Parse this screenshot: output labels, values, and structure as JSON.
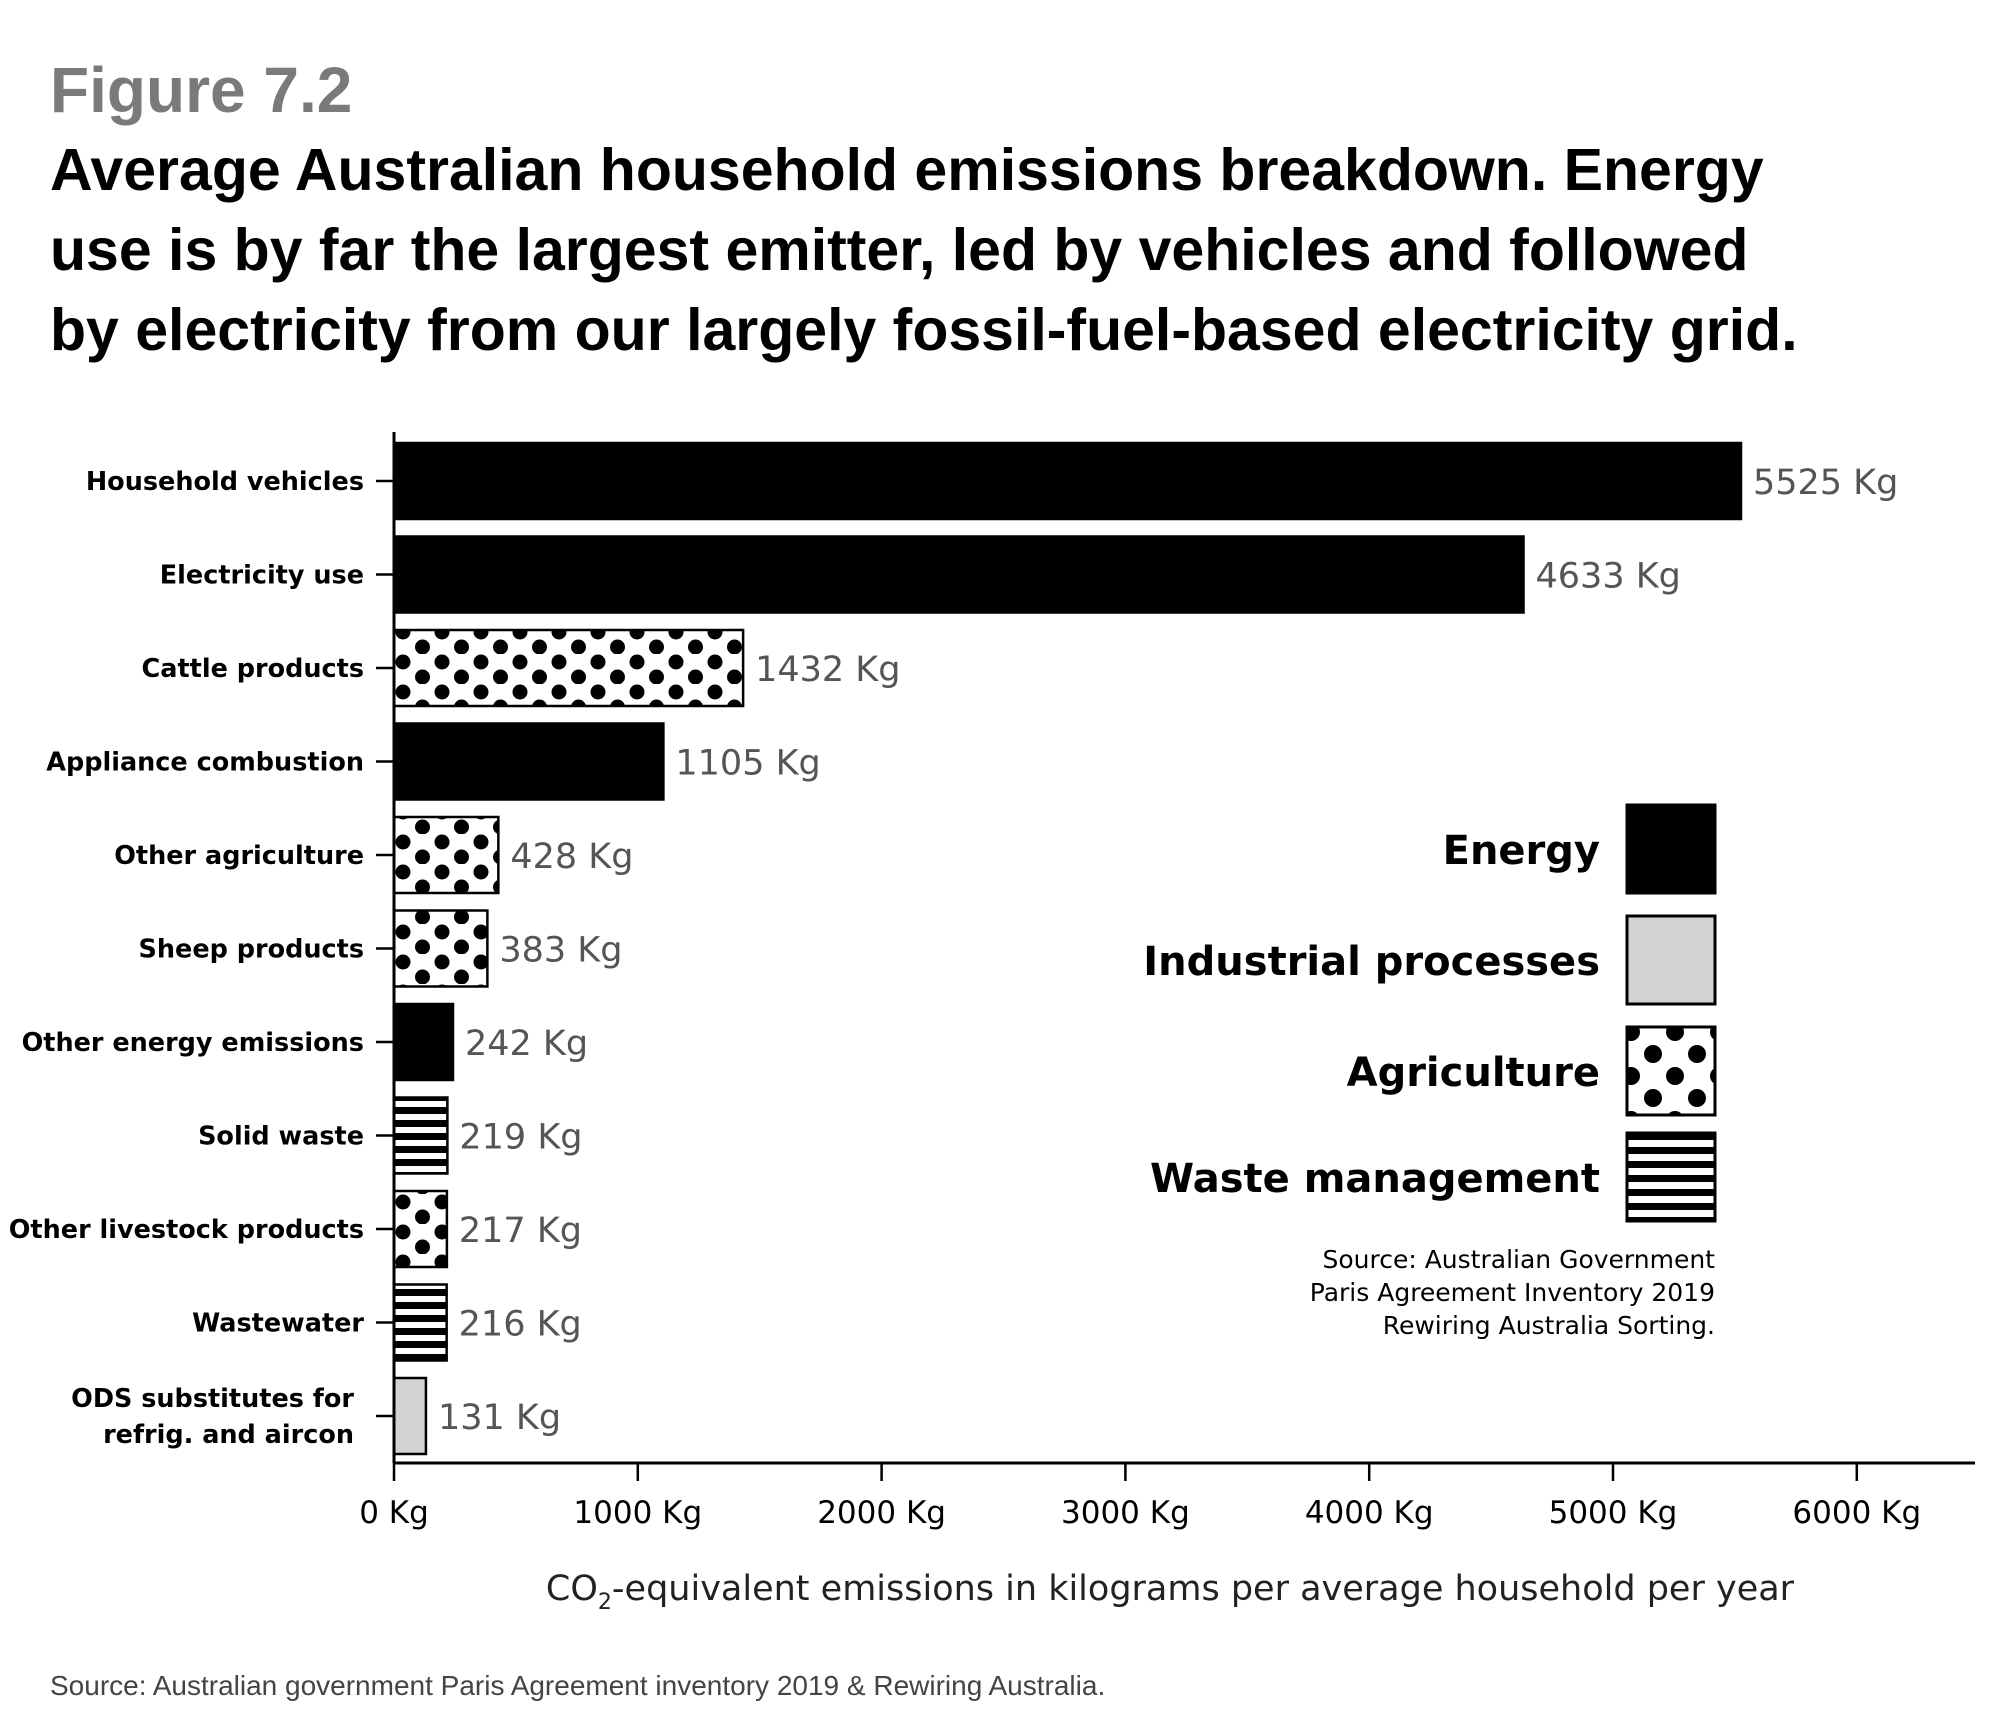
{
  "figure_label": "Figure 7.2",
  "title_lines": [
    "Average Australian household emissions breakdown. Energy",
    "use is by far the largest emitter, led by vehicles and followed",
    "by electricity from our largely fossil-fuel-based electricity grid."
  ],
  "footer_source": "Source: Australian government Paris Agreement inventory 2019 & Rewiring Australia.",
  "colors": {
    "energy": "#000000",
    "industrial": "#d3d3d3",
    "value_label": "#555555"
  },
  "chart_data": {
    "type": "bar",
    "orientation": "horizontal",
    "title": "Average Australian household emissions breakdown",
    "xlabel_parts": [
      "CO",
      "2",
      "-equivalent emissions in kilograms per average household per year"
    ],
    "xlim": [
      0,
      6500
    ],
    "xticks": [
      0,
      1000,
      2000,
      3000,
      4000,
      5000,
      6000
    ],
    "xtick_labels": [
      "0 Kg",
      "1000 Kg",
      "2000 Kg",
      "3000 Kg",
      "4000 Kg",
      "5000 Kg",
      "6000 Kg"
    ],
    "unit_suffix": " Kg",
    "bars": [
      {
        "label": [
          "Household vehicles"
        ],
        "value": 5525,
        "category": "energy"
      },
      {
        "label": [
          "Electricity use"
        ],
        "value": 4633,
        "category": "energy"
      },
      {
        "label": [
          "Cattle products"
        ],
        "value": 1432,
        "category": "agriculture"
      },
      {
        "label": [
          "Appliance combustion"
        ],
        "value": 1105,
        "category": "energy"
      },
      {
        "label": [
          "Other agriculture"
        ],
        "value": 428,
        "category": "agriculture"
      },
      {
        "label": [
          "Sheep products"
        ],
        "value": 383,
        "category": "agriculture"
      },
      {
        "label": [
          "Other energy emissions"
        ],
        "value": 242,
        "category": "energy"
      },
      {
        "label": [
          "Solid waste"
        ],
        "value": 219,
        "category": "waste"
      },
      {
        "label": [
          "Other livestock products"
        ],
        "value": 217,
        "category": "agriculture"
      },
      {
        "label": [
          "Wastewater"
        ],
        "value": 216,
        "category": "waste"
      },
      {
        "label": [
          "ODS substitutes for",
          "refrig. and aircon"
        ],
        "value": 131,
        "category": "industrial"
      }
    ],
    "legend": [
      {
        "category": "energy",
        "label": "Energy"
      },
      {
        "category": "industrial",
        "label": "Industrial processes"
      },
      {
        "category": "agriculture",
        "label": "Agriculture"
      },
      {
        "category": "waste",
        "label": "Waste management"
      }
    ],
    "legend_position": "right",
    "source_lines": [
      "Source: Australian Government",
      "Paris Agreement Inventory 2019",
      "Rewiring Australia Sorting."
    ]
  }
}
